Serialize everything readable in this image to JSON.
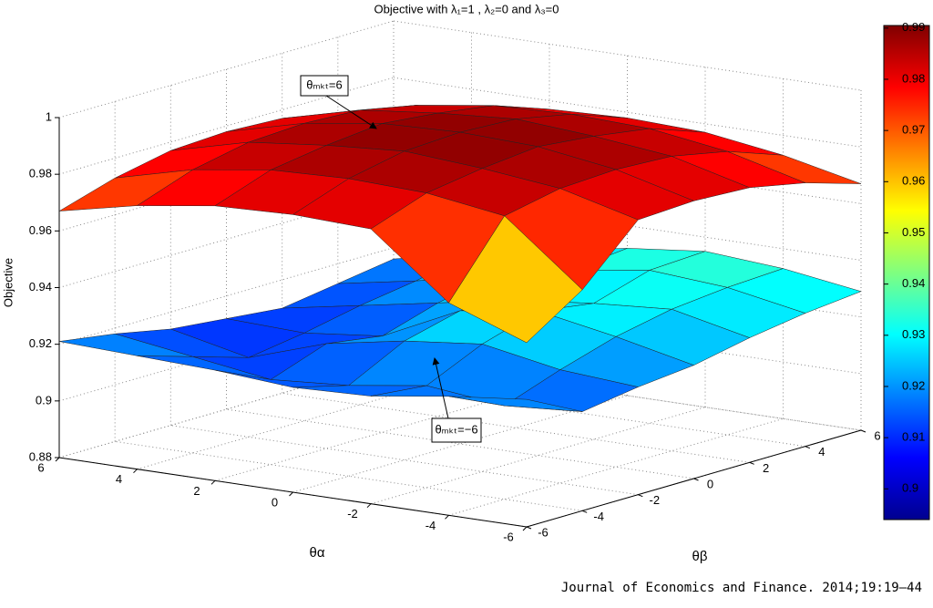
{
  "chart_data": {
    "type": "surface",
    "title": "Objective with λ₁=1 , λ₂=0 and λ₃=0",
    "xlabel": "θα",
    "ylabel": "θβ",
    "zlabel": "Objective",
    "x": [
      -6,
      -4,
      -2,
      0,
      2,
      4,
      6
    ],
    "y": [
      -6,
      -4,
      -2,
      0,
      2,
      4,
      6
    ],
    "xlim": [
      -6,
      6
    ],
    "ylim": [
      -6,
      6
    ],
    "zlim": [
      0.88,
      1
    ],
    "xticks": [
      -6,
      -4,
      -2,
      0,
      2,
      4,
      6
    ],
    "yticks": [
      -6,
      -4,
      -2,
      0,
      2,
      4,
      6
    ],
    "zticks": [
      0.88,
      0.9,
      0.92,
      0.94,
      0.96,
      0.98,
      1
    ],
    "grid": true,
    "colormap": "jet",
    "clim": [
      0.894,
      0.9905
    ],
    "cticks": [
      0.9,
      0.91,
      0.92,
      0.93,
      0.94,
      0.95,
      0.96,
      0.97,
      0.98,
      0.99
    ],
    "series": [
      {
        "z": [
          [
            0.925,
            0.915,
            0.918,
            0.92,
            0.924,
            0.927,
            0.929
          ],
          [
            0.922,
            0.913,
            0.92,
            0.926,
            0.93,
            0.932,
            0.933
          ],
          [
            0.918,
            0.916,
            0.925,
            0.931,
            0.928,
            0.934,
            0.935
          ],
          [
            0.917,
            0.912,
            0.922,
            0.927,
            0.925,
            0.93,
            0.932
          ],
          [
            0.919,
            0.91,
            0.917,
            0.914,
            0.92,
            0.924,
            0.927
          ],
          [
            0.92,
            0.914,
            0.908,
            0.911,
            0.915,
            0.918,
            0.922
          ],
          [
            0.921,
            0.918,
            0.914,
            0.912,
            0.91,
            0.913,
            0.916
          ]
        ]
      },
      {
        "z": [
          [
            0.945,
            0.958,
            0.977,
            0.978,
            0.977,
            0.973,
            0.967
          ],
          [
            0.955,
            0.98,
            0.984,
            0.985,
            0.984,
            0.98,
            0.973
          ],
          [
            0.977,
            0.984,
            0.987,
            0.989,
            0.987,
            0.984,
            0.977
          ],
          [
            0.978,
            0.985,
            0.989,
            0.99,
            0.989,
            0.985,
            0.978
          ],
          [
            0.977,
            0.984,
            0.987,
            0.989,
            0.987,
            0.984,
            0.977
          ],
          [
            0.973,
            0.98,
            0.984,
            0.985,
            0.984,
            0.98,
            0.973
          ],
          [
            0.967,
            0.973,
            0.977,
            0.978,
            0.977,
            0.973,
            0.967
          ]
        ]
      }
    ],
    "annotations": [
      {
        "text": "θₘₖₜ=6"
      },
      {
        "text": "θₘₖₜ=−6"
      }
    ],
    "source": "Journal of Economics and Finance. 2014;19:19–44"
  }
}
